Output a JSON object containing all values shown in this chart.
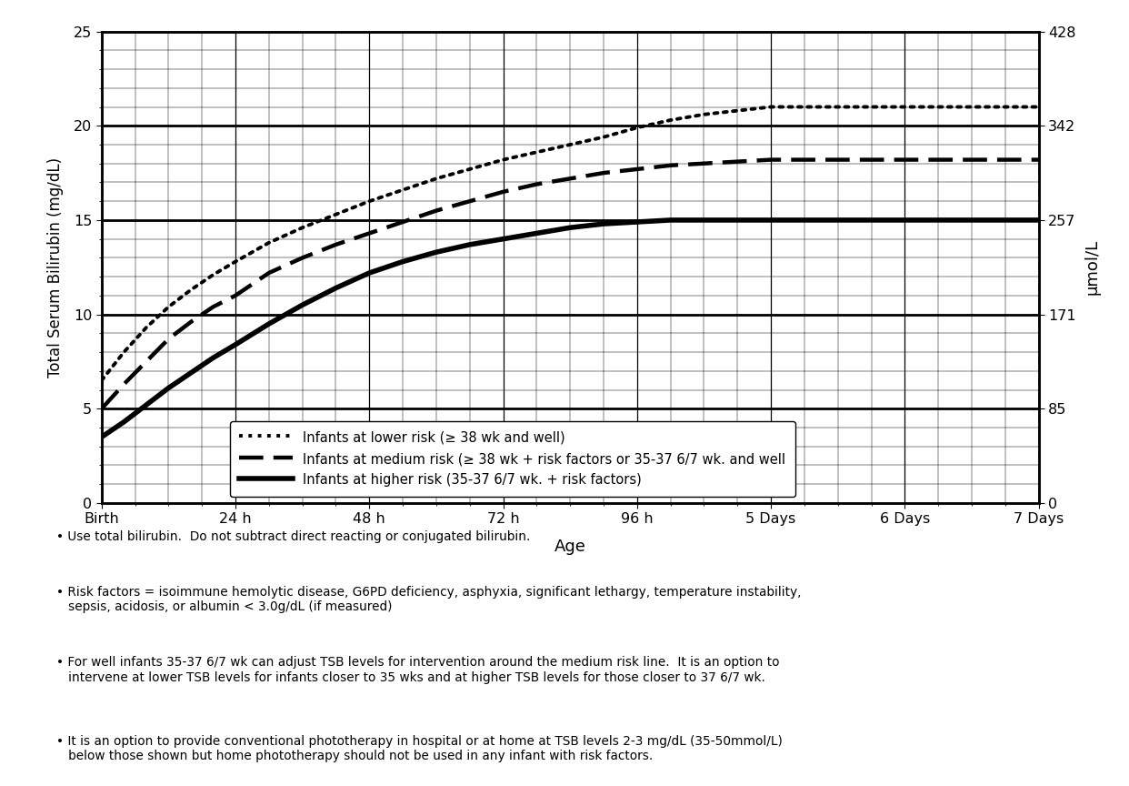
{
  "xlabel": "Age",
  "ylabel": "Total Serum Bilirubin (mg/dL)",
  "ylabel_right": "μmol/L",
  "xlim": [
    0,
    168
  ],
  "ylim": [
    0,
    25
  ],
  "yticks_left": [
    0,
    5,
    10,
    15,
    20,
    25
  ],
  "yticks_right_vals": [
    0,
    85,
    171,
    257,
    342,
    428
  ],
  "yticks_right_pos": [
    0,
    5,
    10,
    15,
    20,
    25
  ],
  "xtick_positions": [
    0,
    24,
    48,
    72,
    96,
    120,
    144,
    168
  ],
  "xtick_labels": [
    "Birth",
    "24 h",
    "48 h",
    "72 h",
    "96 h",
    "5 Days",
    "6 Days",
    "7 Days"
  ],
  "lower_risk_x": [
    0,
    4,
    8,
    12,
    16,
    20,
    24,
    30,
    36,
    42,
    48,
    54,
    60,
    66,
    72,
    78,
    84,
    90,
    96,
    102,
    108,
    114,
    120,
    126,
    132,
    138,
    144,
    150,
    156,
    162,
    168
  ],
  "lower_risk_y": [
    6.5,
    8.0,
    9.3,
    10.4,
    11.3,
    12.1,
    12.8,
    13.8,
    14.6,
    15.3,
    16.0,
    16.6,
    17.2,
    17.7,
    18.2,
    18.6,
    19.0,
    19.4,
    19.9,
    20.3,
    20.6,
    20.8,
    21.0,
    21.0,
    21.0,
    21.0,
    21.0,
    21.0,
    21.0,
    21.0,
    21.0
  ],
  "medium_risk_x": [
    0,
    4,
    8,
    12,
    16,
    20,
    24,
    30,
    36,
    42,
    48,
    54,
    60,
    66,
    72,
    78,
    84,
    90,
    96,
    102,
    108,
    114,
    120,
    126,
    132,
    138,
    144,
    150,
    156,
    162,
    168
  ],
  "medium_risk_y": [
    5.0,
    6.3,
    7.5,
    8.7,
    9.6,
    10.4,
    11.0,
    12.2,
    13.0,
    13.7,
    14.3,
    14.9,
    15.5,
    16.0,
    16.5,
    16.9,
    17.2,
    17.5,
    17.7,
    17.9,
    18.0,
    18.1,
    18.2,
    18.2,
    18.2,
    18.2,
    18.2,
    18.2,
    18.2,
    18.2,
    18.2
  ],
  "higher_risk_x": [
    0,
    4,
    8,
    12,
    16,
    20,
    24,
    30,
    36,
    42,
    48,
    54,
    60,
    66,
    72,
    78,
    84,
    90,
    96,
    102,
    108,
    114,
    120,
    126,
    132,
    138,
    144,
    150,
    156,
    162,
    168
  ],
  "higher_risk_y": [
    3.5,
    4.3,
    5.2,
    6.1,
    6.9,
    7.7,
    8.4,
    9.5,
    10.5,
    11.4,
    12.2,
    12.8,
    13.3,
    13.7,
    14.0,
    14.3,
    14.6,
    14.8,
    14.9,
    15.0,
    15.0,
    15.0,
    15.0,
    15.0,
    15.0,
    15.0,
    15.0,
    15.0,
    15.0,
    15.0,
    15.0
  ],
  "legend_labels": [
    "Infants at lower risk (≥ 38 wk and well)",
    "Infants at medium risk (≥ 38 wk + risk factors or 35-37 6/7 wk. and well",
    "Infants at higher risk (35-37 6/7 wk. + risk factors)"
  ],
  "notes": [
    "Use total bilirubin.  Do not subtract direct reacting or conjugated bilirubin.",
    "Risk factors = isoimmune hemolytic disease, G6PD deficiency, asphyxia, significant lethargy, temperature instability,\n   sepsis, acidosis, or albumin < 3.0g/dL (if measured)",
    "For well infants 35-37 6/7 wk can adjust TSB levels for intervention around the medium risk line.  It is an option to\n   intervene at lower TSB levels for infants closer to 35 wks and at higher TSB levels for those closer to 37 6/7 wk.",
    "It is an option to provide conventional phototherapy in hospital or at home at TSB levels 2-3 mg/dL (35-50mmol/L)\n   below those shown but home phototherapy should not be used in any infant with risk factors."
  ],
  "bg_color": "#ffffff",
  "grid_color": "#000000"
}
